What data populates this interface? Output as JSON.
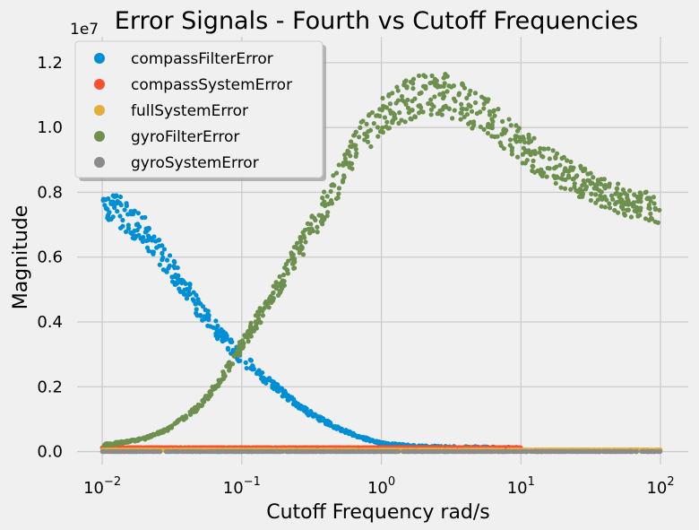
{
  "chart_data": {
    "type": "scatter",
    "title": "Error Signals - Fourth vs Cutoff Frequencies",
    "xlabel": "Cutoff Frequency rad/s",
    "ylabel": "Magnitude",
    "x_scale": "log",
    "xlim": [
      0.0066,
      158
    ],
    "ylim": [
      -0.04,
      1.28
    ],
    "y_multiplier_label": "1e7",
    "x_tick_values": [
      0.01,
      0.1,
      1,
      10,
      100
    ],
    "x_tick_bases": [
      "10",
      "10",
      "10",
      "10",
      "10"
    ],
    "x_tick_exponents": [
      "−2",
      "−1",
      "0",
      "1",
      "2"
    ],
    "y_tick_values": [
      0.0,
      0.2,
      0.4,
      0.6,
      0.8,
      1.0,
      1.2
    ],
    "y_tick_labels": [
      "0.0",
      "0.2",
      "0.4",
      "0.6",
      "0.8",
      "1.0",
      "1.2"
    ],
    "grid": true,
    "legend_position": "top-left",
    "series": [
      {
        "name": "compassFilterError",
        "color": "#008fd5",
        "x": [
          0.01,
          0.015,
          0.02,
          0.03,
          0.05,
          0.07,
          0.1,
          0.15,
          0.2,
          0.3,
          0.5,
          0.7,
          1.0,
          1.5,
          2,
          3,
          5,
          7,
          10
        ],
        "y": [
          0.78,
          0.72,
          0.68,
          0.58,
          0.44,
          0.36,
          0.29,
          0.22,
          0.18,
          0.12,
          0.07,
          0.045,
          0.025,
          0.018,
          0.015,
          0.013,
          0.012,
          0.011,
          0.01
        ],
        "spread": 0.07
      },
      {
        "name": "compassSystemError",
        "color": "#fc4f30",
        "x": [
          0.01,
          0.1,
          1,
          10
        ],
        "y": [
          0.012,
          0.012,
          0.012,
          0.012
        ],
        "spread": 0.004
      },
      {
        "name": "fullSystemError",
        "color": "#e5ae38",
        "x": [
          0.01,
          0.1,
          1,
          10,
          100
        ],
        "y": [
          0.005,
          0.005,
          0.005,
          0.005,
          0.005
        ],
        "spread": 0.003
      },
      {
        "name": "gyroFilterError",
        "color": "#6d904f",
        "x": [
          0.01,
          0.015,
          0.02,
          0.03,
          0.05,
          0.07,
          0.1,
          0.15,
          0.2,
          0.3,
          0.5,
          0.7,
          1.0,
          1.5,
          2,
          3,
          5,
          7,
          10,
          20,
          30,
          50,
          100
        ],
        "y": [
          0.02,
          0.03,
          0.04,
          0.07,
          0.14,
          0.22,
          0.33,
          0.45,
          0.54,
          0.67,
          0.84,
          0.96,
          1.03,
          1.08,
          1.1,
          1.1,
          1.05,
          1.0,
          0.94,
          0.86,
          0.82,
          0.78,
          0.745
        ],
        "spread": 0.06
      },
      {
        "name": "gyroSystemError",
        "color": "#8b8b8b",
        "x": [
          0.01,
          0.1,
          1,
          10,
          100
        ],
        "y": [
          0.0,
          0.0,
          0.0,
          0.0,
          0.0
        ],
        "spread": 0.002
      }
    ]
  }
}
